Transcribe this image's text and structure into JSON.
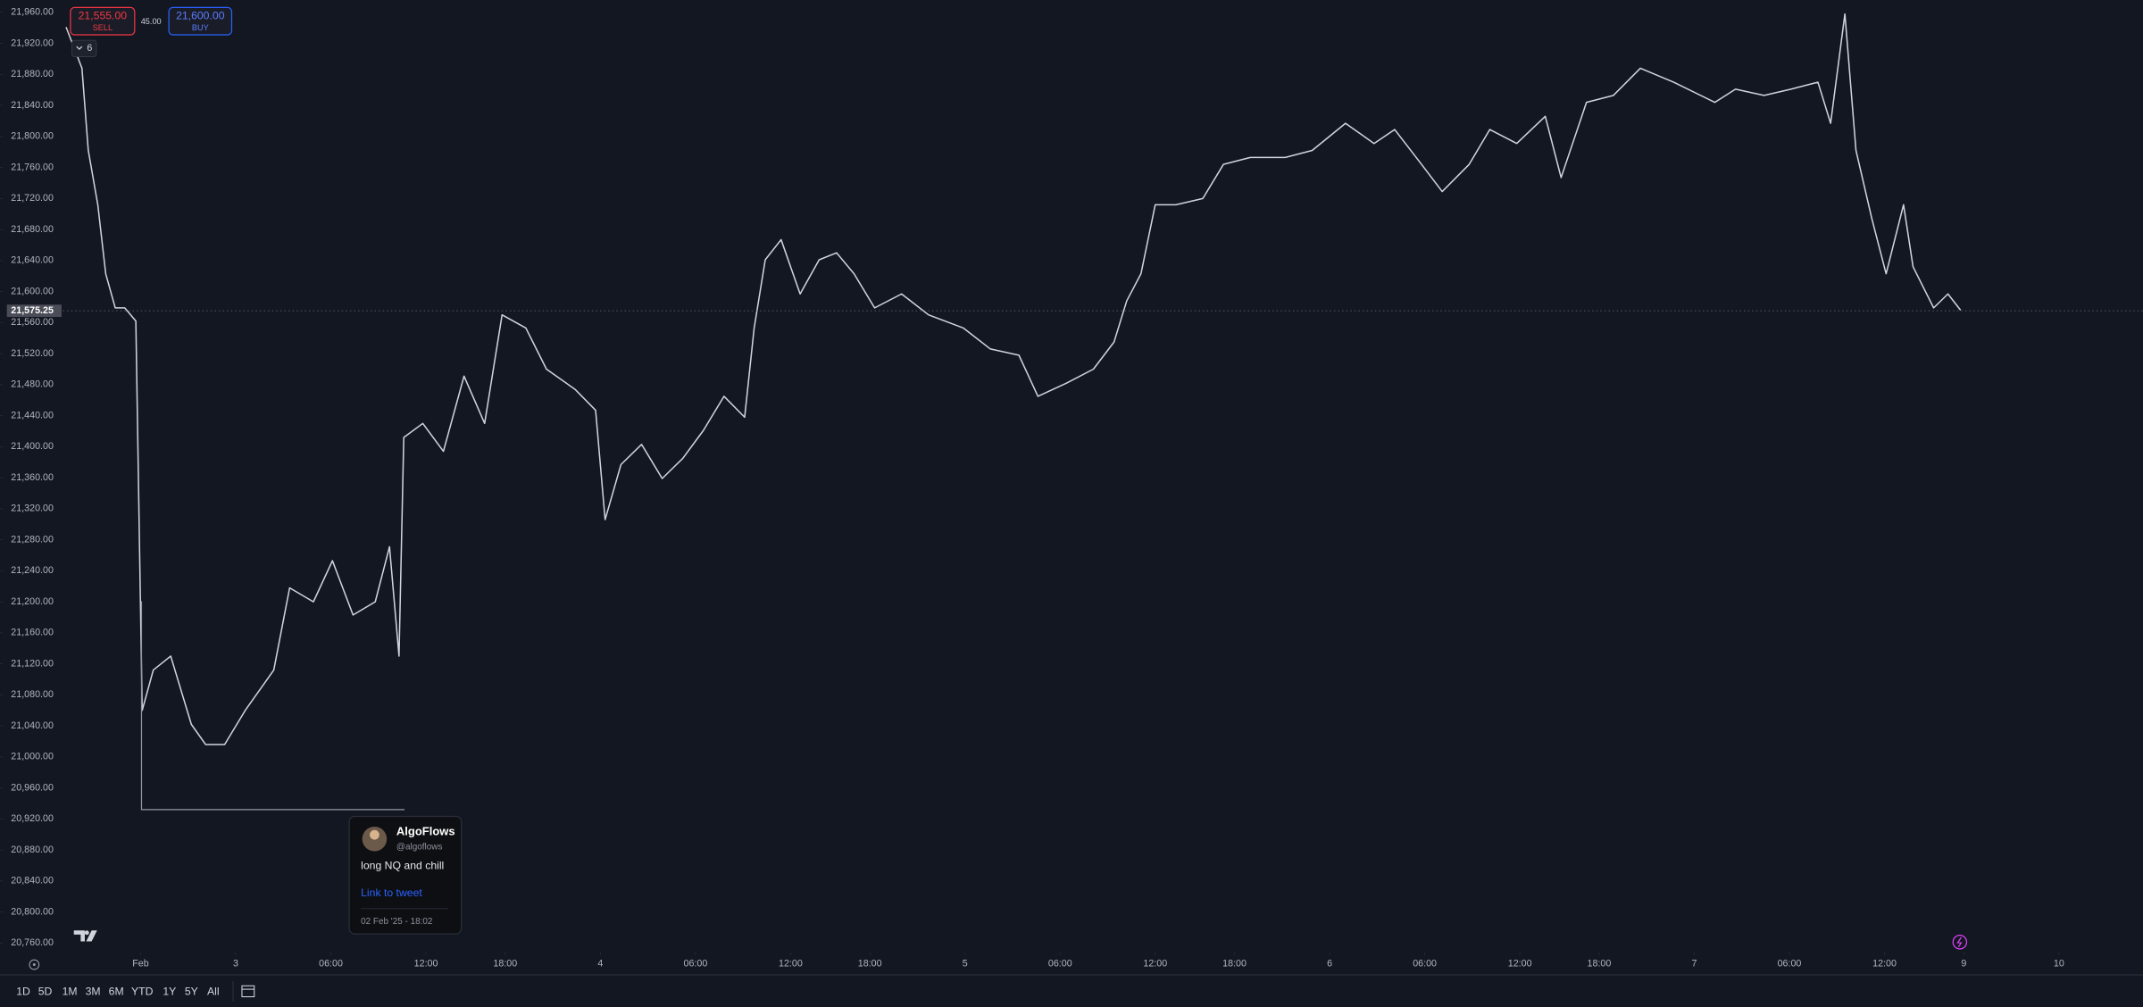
{
  "chart_data": {
    "type": "line",
    "color": "#d1d4dc",
    "grid": false,
    "x": [
      -4.7,
      -3.7,
      -3.3,
      -2.7,
      -2.2,
      -1.6,
      -1.0,
      -0.3,
      0.1,
      0.8,
      1.9,
      3.2,
      4.1,
      5.3,
      6.6,
      8.4,
      9.4,
      10.9,
      12.1,
      13.4,
      14.8,
      15.7,
      16.3,
      16.6,
      17.8,
      19.1,
      20.4,
      21.7,
      22.8,
      24.3,
      25.6,
      27.4,
      28.7,
      29.3,
      30.3,
      31.6,
      32.9,
      34.2,
      35.5,
      36.8,
      38.1,
      38.7,
      39.4,
      40.4,
      41.6,
      42.8,
      43.9,
      45.0,
      46.3,
      48.0,
      49.7,
      51.9,
      53.6,
      55.4,
      56.6,
      58.4,
      60.1,
      61.4,
      62.2,
      63.1,
      64.0,
      65.3,
      67.0,
      68.3,
      70.0,
      72.2,
      73.9,
      76.0,
      77.8,
      79.1,
      80.8,
      82.1,
      83.8,
      85.1,
      86.8,
      88.6,
      89.6,
      91.2,
      92.9,
      94.6,
      96.7,
      99.3,
      100.6,
      102.4,
      104.1,
      105.8,
      106.6,
      107.5,
      108.2,
      109.2,
      110.1,
      111.2,
      111.8,
      113.1,
      114.0,
      114.8
    ],
    "values": [
      21941,
      21888,
      21782,
      21712,
      21623,
      21579,
      21579,
      21562,
      21060,
      21112,
      21130,
      21042,
      21016,
      21016,
      21060,
      21112,
      21218,
      21200,
      21253,
      21183,
      21200,
      21271,
      21130,
      21412,
      21430,
      21394,
      21491,
      21430,
      21570,
      21553,
      21500,
      21474,
      21447,
      21306,
      21377,
      21403,
      21359,
      21385,
      21421,
      21465,
      21438,
      21553,
      21641,
      21667,
      21597,
      21641,
      21650,
      21623,
      21579,
      21597,
      21570,
      21553,
      21526,
      21518,
      21465,
      21482,
      21500,
      21535,
      21588,
      21623,
      21712,
      21712,
      21720,
      21764,
      21773,
      21773,
      21782,
      21817,
      21791,
      21809,
      21764,
      21729,
      21764,
      21809,
      21791,
      21826,
      21747,
      21844,
      21853,
      21888,
      21870,
      21844,
      21861,
      21853,
      21861,
      21870,
      21817,
      21958,
      21782,
      21694,
      21623,
      21712,
      21632,
      21579,
      21597,
      21576
    ],
    "xlim": [
      -4.9,
      126.3
    ],
    "ylim": [
      20748,
      21976
    ],
    "xticks": [
      {
        "value": 0,
        "label": "Feb"
      },
      {
        "value": 6,
        "label": "3"
      },
      {
        "value": 12,
        "label": "06:00"
      },
      {
        "value": 18,
        "label": "12:00"
      },
      {
        "value": 23,
        "label": "18:00"
      },
      {
        "value": 29,
        "label": "4"
      },
      {
        "value": 35,
        "label": "06:00"
      },
      {
        "value": 41,
        "label": "12:00"
      },
      {
        "value": 46,
        "label": "18:00"
      },
      {
        "value": 52,
        "label": "5"
      },
      {
        "value": 58,
        "label": "06:00"
      },
      {
        "value": 64,
        "label": "12:00"
      },
      {
        "value": 69,
        "label": "18:00"
      },
      {
        "value": 75,
        "label": "6"
      },
      {
        "value": 81,
        "label": "06:00"
      },
      {
        "value": 87,
        "label": "12:00"
      },
      {
        "value": 92,
        "label": "18:00"
      },
      {
        "value": 98,
        "label": "7"
      },
      {
        "value": 104,
        "label": "06:00"
      },
      {
        "value": 110,
        "label": "12:00"
      },
      {
        "value": 115,
        "label": "9"
      },
      {
        "value": 121,
        "label": "10"
      }
    ],
    "yticks": [
      {
        "value": 20760,
        "label": "20,760.00"
      },
      {
        "value": 20800,
        "label": "20,800.00"
      },
      {
        "value": 20840,
        "label": "20,840.00"
      },
      {
        "value": 20880,
        "label": "20,880.00"
      },
      {
        "value": 20920,
        "label": "20,920.00"
      },
      {
        "value": 20960,
        "label": "20,960.00"
      },
      {
        "value": 21000,
        "label": "21,000.00"
      },
      {
        "value": 21040,
        "label": "21,040.00"
      },
      {
        "value": 21080,
        "label": "21,080.00"
      },
      {
        "value": 21120,
        "label": "21,120.00"
      },
      {
        "value": 21160,
        "label": "21,160.00"
      },
      {
        "value": 21200,
        "label": "21,200.00"
      },
      {
        "value": 21240,
        "label": "21,240.00"
      },
      {
        "value": 21280,
        "label": "21,280.00"
      },
      {
        "value": 21320,
        "label": "21,320.00"
      },
      {
        "value": 21360,
        "label": "21,360.00"
      },
      {
        "value": 21400,
        "label": "21,400.00"
      },
      {
        "value": 21440,
        "label": "21,440.00"
      },
      {
        "value": 21480,
        "label": "21,480.00"
      },
      {
        "value": 21520,
        "label": "21,520.00"
      },
      {
        "value": 21560,
        "label": "21,560.00"
      },
      {
        "value": 21600,
        "label": "21,600.00"
      },
      {
        "value": 21640,
        "label": "21,640.00"
      },
      {
        "value": 21680,
        "label": "21,680.00"
      },
      {
        "value": 21720,
        "label": "21,720.00"
      },
      {
        "value": 21760,
        "label": "21,760.00"
      },
      {
        "value": 21800,
        "label": "21,800.00"
      },
      {
        "value": 21840,
        "label": "21,840.00"
      },
      {
        "value": 21880,
        "label": "21,880.00"
      },
      {
        "value": 21920,
        "label": "21,920.00"
      },
      {
        "value": 21960,
        "label": "21,960.00"
      }
    ],
    "last_price": {
      "value": 21575.25,
      "label": "21,575.25"
    }
  },
  "trade": {
    "sell_price": "21,555.00",
    "sell": "SELL",
    "spread": "45.00",
    "buy_price": "21,600.00",
    "buy": "BUY",
    "badge": "6"
  },
  "tweet": {
    "name": "AlgoFlows",
    "handle": "@algoflows",
    "text": "long NQ and chill",
    "link": "Link to tweet",
    "date": "02 Feb '25 - 18:02"
  },
  "ranges": [
    "1D",
    "5D",
    "1M",
    "3M",
    "6M",
    "YTD",
    "1Y",
    "5Y",
    "All"
  ]
}
